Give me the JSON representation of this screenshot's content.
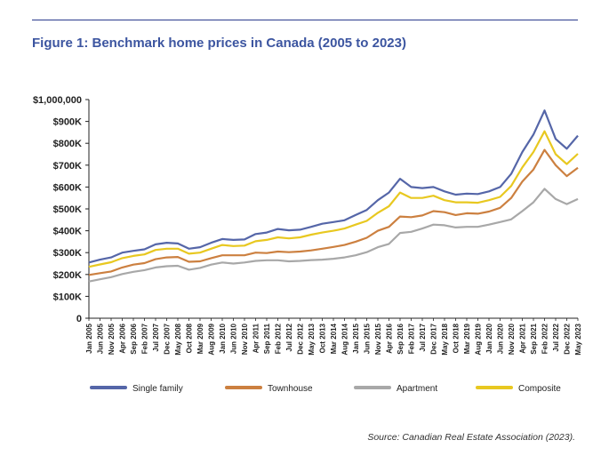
{
  "chart_data": {
    "type": "line",
    "title": "Figure 1: Benchmark home prices in Canada (2005 to 2023)",
    "source": "Source: Canadian Real Estate Association (2023).",
    "ylim": [
      0,
      1000000
    ],
    "y_ticks": [
      {
        "value": 0,
        "label": "0"
      },
      {
        "value": 100000,
        "label": "$100K"
      },
      {
        "value": 200000,
        "label": "$200K"
      },
      {
        "value": 300000,
        "label": "$300K"
      },
      {
        "value": 400000,
        "label": "$400K"
      },
      {
        "value": 500000,
        "label": "$500K"
      },
      {
        "value": 600000,
        "label": "$600K"
      },
      {
        "value": 700000,
        "label": "$700K"
      },
      {
        "value": 800000,
        "label": "$800K"
      },
      {
        "value": 900000,
        "label": "$900K"
      },
      {
        "value": 1000000,
        "label": "$1,000,000"
      }
    ],
    "x_ticks": [
      "Jan 2005",
      "Jun 2005",
      "Nov 2005",
      "Apr 2006",
      "Sep 2006",
      "Feb 2007",
      "Jul 2007",
      "Dec 2007",
      "May 2008",
      "Oct 2008",
      "Mar 2009",
      "Aug 2009",
      "Jan 2010",
      "Jun 2010",
      "Nov 2010",
      "Apr 2011",
      "Sep 2011",
      "Feb 2012",
      "Jul 2012",
      "Dec 2012",
      "May 2013",
      "Oct 2013",
      "Mar 2014",
      "Aug 2014",
      "Jan 2015",
      "Jun 2015",
      "Nov 2015",
      "Apr 2016",
      "Sep 2016",
      "Feb 2017",
      "Jul 2017",
      "Dec 2017",
      "May 2018",
      "Oct 2018",
      "Mar 2019",
      "Aug 2019",
      "Jan 2020",
      "Jun 2020",
      "Nov 2020",
      "Apr 2021",
      "Sep 2021",
      "Feb 2022",
      "Jul 2022",
      "Dec 2022",
      "May 2023"
    ],
    "x": [
      "2005-01",
      "2005-06",
      "2005-11",
      "2006-04",
      "2006-09",
      "2007-02",
      "2007-07",
      "2007-12",
      "2008-05",
      "2008-10",
      "2009-03",
      "2009-08",
      "2010-01",
      "2010-06",
      "2010-11",
      "2011-04",
      "2011-09",
      "2012-02",
      "2012-07",
      "2012-12",
      "2013-05",
      "2013-10",
      "2014-03",
      "2014-08",
      "2015-01",
      "2015-06",
      "2015-11",
      "2016-04",
      "2016-09",
      "2017-02",
      "2017-07",
      "2017-12",
      "2018-05",
      "2018-10",
      "2019-03",
      "2019-08",
      "2020-01",
      "2020-06",
      "2020-11",
      "2021-04",
      "2021-09",
      "2022-02",
      "2022-07",
      "2022-12",
      "2023-05"
    ],
    "series": [
      {
        "name": "Single family",
        "color": "#5566a8",
        "values": [
          255000,
          268000,
          278000,
          300000,
          308000,
          315000,
          338000,
          345000,
          342000,
          318000,
          325000,
          345000,
          362000,
          358000,
          360000,
          385000,
          392000,
          408000,
          402000,
          405000,
          418000,
          432000,
          440000,
          448000,
          472000,
          495000,
          540000,
          575000,
          638000,
          600000,
          595000,
          600000,
          580000,
          565000,
          570000,
          568000,
          580000,
          600000,
          660000,
          760000,
          840000,
          950000,
          820000,
          775000,
          835000
        ]
      },
      {
        "name": "Townhouse",
        "color": "#cc8040",
        "values": [
          198000,
          206000,
          214000,
          232000,
          245000,
          252000,
          270000,
          278000,
          280000,
          258000,
          260000,
          275000,
          288000,
          288000,
          288000,
          300000,
          298000,
          305000,
          302000,
          305000,
          310000,
          318000,
          326000,
          335000,
          350000,
          368000,
          400000,
          418000,
          465000,
          462000,
          470000,
          490000,
          485000,
          472000,
          480000,
          478000,
          488000,
          505000,
          550000,
          625000,
          680000,
          770000,
          700000,
          650000,
          688000
        ]
      },
      {
        "name": "Apartment",
        "color": "#a8a8a8",
        "values": [
          168000,
          178000,
          188000,
          202000,
          212000,
          220000,
          232000,
          238000,
          240000,
          222000,
          230000,
          245000,
          255000,
          250000,
          255000,
          262000,
          265000,
          265000,
          260000,
          262000,
          266000,
          268000,
          272000,
          278000,
          288000,
          302000,
          325000,
          340000,
          390000,
          395000,
          410000,
          428000,
          425000,
          415000,
          418000,
          418000,
          428000,
          440000,
          452000,
          490000,
          530000,
          592000,
          545000,
          522000,
          545000
        ]
      },
      {
        "name": "Composite",
        "color": "#e8c820",
        "values": [
          235000,
          246000,
          256000,
          275000,
          285000,
          292000,
          312000,
          318000,
          318000,
          295000,
          300000,
          318000,
          335000,
          330000,
          332000,
          352000,
          358000,
          370000,
          365000,
          370000,
          382000,
          392000,
          400000,
          410000,
          428000,
          445000,
          482000,
          512000,
          575000,
          550000,
          550000,
          560000,
          540000,
          530000,
          530000,
          528000,
          540000,
          555000,
          605000,
          690000,
          760000,
          855000,
          750000,
          705000,
          752000
        ]
      }
    ],
    "legend_position": "bottom",
    "grid": false
  }
}
